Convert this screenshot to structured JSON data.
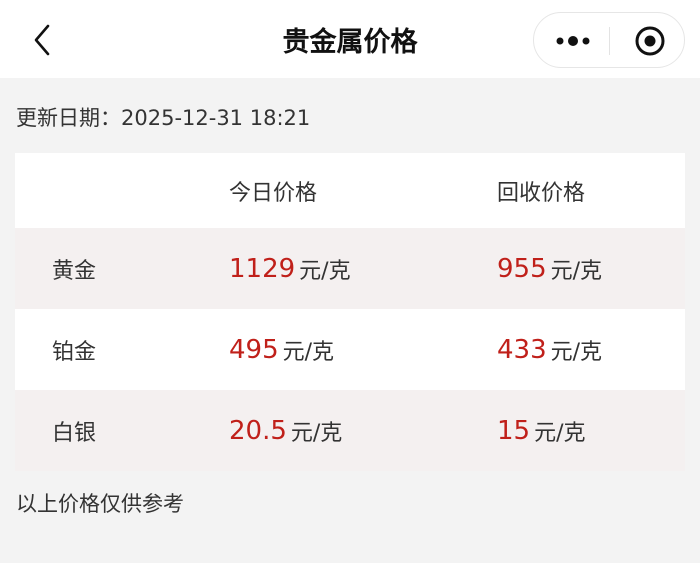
{
  "nav": {
    "title": "贵金属价格",
    "back_icon": "chevron-left-icon",
    "more_icon": "more-dots-icon",
    "close_icon": "target-close-icon"
  },
  "update": {
    "label": "更新日期：",
    "value": "2025-12-31 18:21"
  },
  "table": {
    "headers": [
      "",
      "今日价格",
      "回收价格"
    ],
    "rows": [
      {
        "name": "黄金",
        "today": "1129",
        "today_unit": "元/克",
        "recycle": "955",
        "recycle_unit": "元/克"
      },
      {
        "name": "铂金",
        "today": "495",
        "today_unit": "元/克",
        "recycle": "433",
        "recycle_unit": "元/克"
      },
      {
        "name": "白银",
        "today": "20.5",
        "today_unit": "元/克",
        "recycle": "15",
        "recycle_unit": "元/克"
      }
    ]
  },
  "note": "以上价格仅供参考",
  "colors": {
    "price": "#c0201a",
    "row_tint": "#f4f0f0",
    "background": "#f3f3f3"
  }
}
